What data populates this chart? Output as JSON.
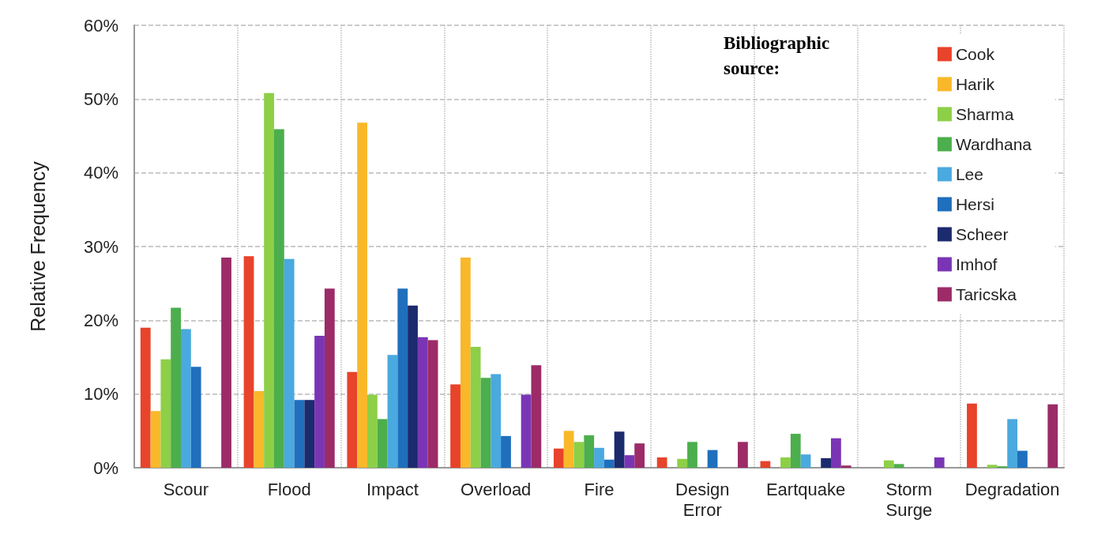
{
  "chart_data": {
    "type": "bar",
    "ylabel": "Relative Frequency",
    "legend_title": "Bibliographic source:",
    "categories": [
      "Scour",
      "Flood",
      "Impact",
      "Overload",
      "Fire",
      "Design Error",
      "Eartquake",
      "Storm Surge",
      "Degradation"
    ],
    "series": [
      {
        "name": "Cook",
        "color": "#e8432b",
        "values": [
          19,
          28.7,
          13,
          11.3,
          2.6,
          1.4,
          0.9,
          null,
          8.7
        ]
      },
      {
        "name": "Harik",
        "color": "#f9b82a",
        "values": [
          7.7,
          10.4,
          46.8,
          28.5,
          5.0,
          null,
          null,
          null,
          null
        ]
      },
      {
        "name": "Sharma",
        "color": "#8dcf47",
        "values": [
          14.7,
          50.8,
          9.9,
          16.4,
          3.5,
          1.2,
          1.4,
          1.0,
          0.4
        ]
      },
      {
        "name": "Wardhana",
        "color": "#4cae4c",
        "values": [
          21.7,
          45.9,
          6.6,
          12.2,
          4.4,
          3.5,
          4.6,
          0.5,
          0.2
        ]
      },
      {
        "name": "Lee",
        "color": "#4aa9de",
        "values": [
          18.8,
          28.3,
          15.3,
          12.7,
          2.7,
          null,
          1.8,
          null,
          6.6
        ]
      },
      {
        "name": "Hersi",
        "color": "#1f6fbd",
        "values": [
          13.7,
          9.2,
          24.3,
          4.3,
          1.1,
          2.4,
          null,
          null,
          2.3
        ]
      },
      {
        "name": "Scheer",
        "color": "#1c2a6e",
        "values": [
          null,
          9.2,
          22,
          null,
          4.9,
          null,
          1.3,
          null,
          null
        ]
      },
      {
        "name": "Imhof",
        "color": "#7a35b5",
        "values": [
          null,
          17.9,
          17.7,
          9.9,
          1.7,
          null,
          4.0,
          1.4,
          null
        ]
      },
      {
        "name": "Taricska",
        "color": "#9c2b68",
        "values": [
          28.5,
          24.3,
          17.3,
          13.9,
          3.3,
          3.5,
          0.3,
          null,
          8.6
        ]
      }
    ],
    "ylim": [
      0,
      60
    ],
    "yticks": [
      {
        "value": 0,
        "label": "0%"
      },
      {
        "value": 10,
        "label": "10%"
      },
      {
        "value": 20,
        "label": "20%"
      },
      {
        "value": 30,
        "label": "30%"
      },
      {
        "value": 40,
        "label": "40%"
      },
      {
        "value": 50,
        "label": "50%"
      },
      {
        "value": 60,
        "label": "60%"
      }
    ],
    "grid": true,
    "legend": "top right"
  }
}
